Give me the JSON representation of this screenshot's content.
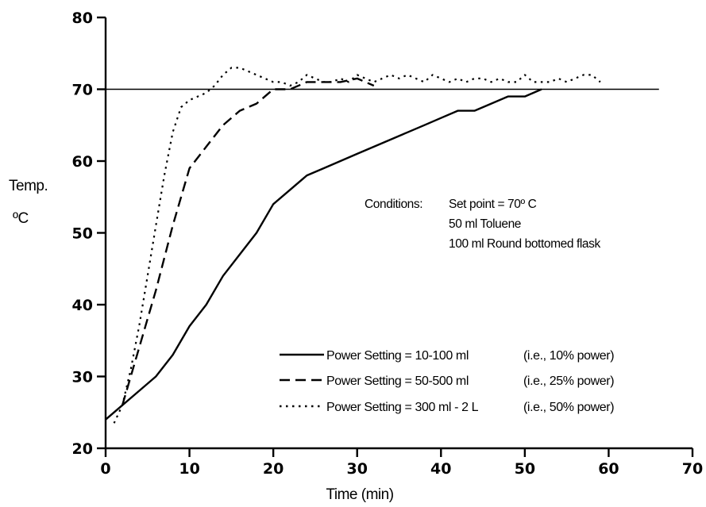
{
  "chart_data": {
    "type": "line",
    "title": "",
    "xlabel": "Time (min)",
    "ylabel": "Temp.",
    "ylabel_unit": "ºC",
    "xlim": [
      0,
      70
    ],
    "ylim": [
      20,
      80
    ],
    "xticks": [
      0,
      10,
      20,
      30,
      40,
      50,
      60,
      70
    ],
    "yticks": [
      20,
      30,
      40,
      50,
      60,
      70,
      80
    ],
    "grid": false,
    "reference_line": {
      "y": 70,
      "x_range": [
        0,
        66
      ]
    },
    "annotation": {
      "label": "Conditions:",
      "lines": [
        "Set point = 70º C",
        "50 ml Toluene",
        "100 ml Round bottomed flask"
      ]
    },
    "legend_position": "bottom-right",
    "series": [
      {
        "name": "Power Setting = 10-100 ml",
        "note": "(i.e., 10% power)",
        "style": "solid",
        "x": [
          0,
          2,
          4,
          6,
          8,
          10,
          12,
          14,
          16,
          18,
          20,
          22,
          24,
          26,
          28,
          30,
          32,
          34,
          36,
          38,
          40,
          42,
          44,
          46,
          48,
          50,
          52
        ],
        "y": [
          24,
          26,
          28,
          30,
          33,
          37,
          40,
          44,
          47,
          50,
          54,
          56,
          58,
          59,
          60,
          61,
          62,
          63,
          64,
          65,
          66,
          67,
          67,
          68,
          69,
          69,
          70
        ]
      },
      {
        "name": "Power Setting = 50-500 ml",
        "note": "(i.e., 25% power)",
        "style": "dashed",
        "x": [
          2,
          4,
          6,
          8,
          10,
          12,
          14,
          16,
          18,
          20,
          22,
          24,
          26,
          28,
          30,
          32
        ],
        "y": [
          26,
          34,
          42,
          51,
          59,
          62,
          65,
          67,
          68,
          70,
          70,
          71,
          71,
          71,
          71.5,
          70.5
        ]
      },
      {
        "name": "Power Setting = 300 ml - 2 L",
        "note": "(i.e., 50% power)",
        "style": "dotted",
        "x": [
          1,
          2,
          3,
          4,
          5,
          6,
          7,
          8,
          9,
          10,
          11,
          12,
          13,
          14,
          15,
          16,
          17,
          18,
          19,
          20,
          21,
          22,
          23,
          24,
          25,
          26,
          27,
          28,
          29,
          30,
          31,
          32,
          33,
          34,
          35,
          36,
          37,
          38,
          39,
          40,
          41,
          42,
          43,
          44,
          45,
          46,
          47,
          48,
          49,
          50,
          51,
          52,
          53,
          54,
          55,
          56,
          57,
          58,
          59
        ],
        "y": [
          23.5,
          26,
          31,
          37,
          44,
          51,
          58,
          64,
          67.5,
          68.5,
          69,
          69.5,
          70.5,
          72,
          73,
          73,
          72.5,
          72,
          71.5,
          71,
          71,
          70.5,
          71,
          72,
          71.5,
          71,
          71,
          71.5,
          71,
          72,
          71.5,
          71,
          71.5,
          72,
          71.5,
          72,
          71.5,
          71,
          72,
          71.5,
          71,
          71.5,
          71,
          71.5,
          71.5,
          71,
          71.5,
          71,
          71,
          72,
          71,
          71,
          71,
          71.5,
          71,
          71.5,
          72,
          72,
          71
        ]
      }
    ]
  }
}
